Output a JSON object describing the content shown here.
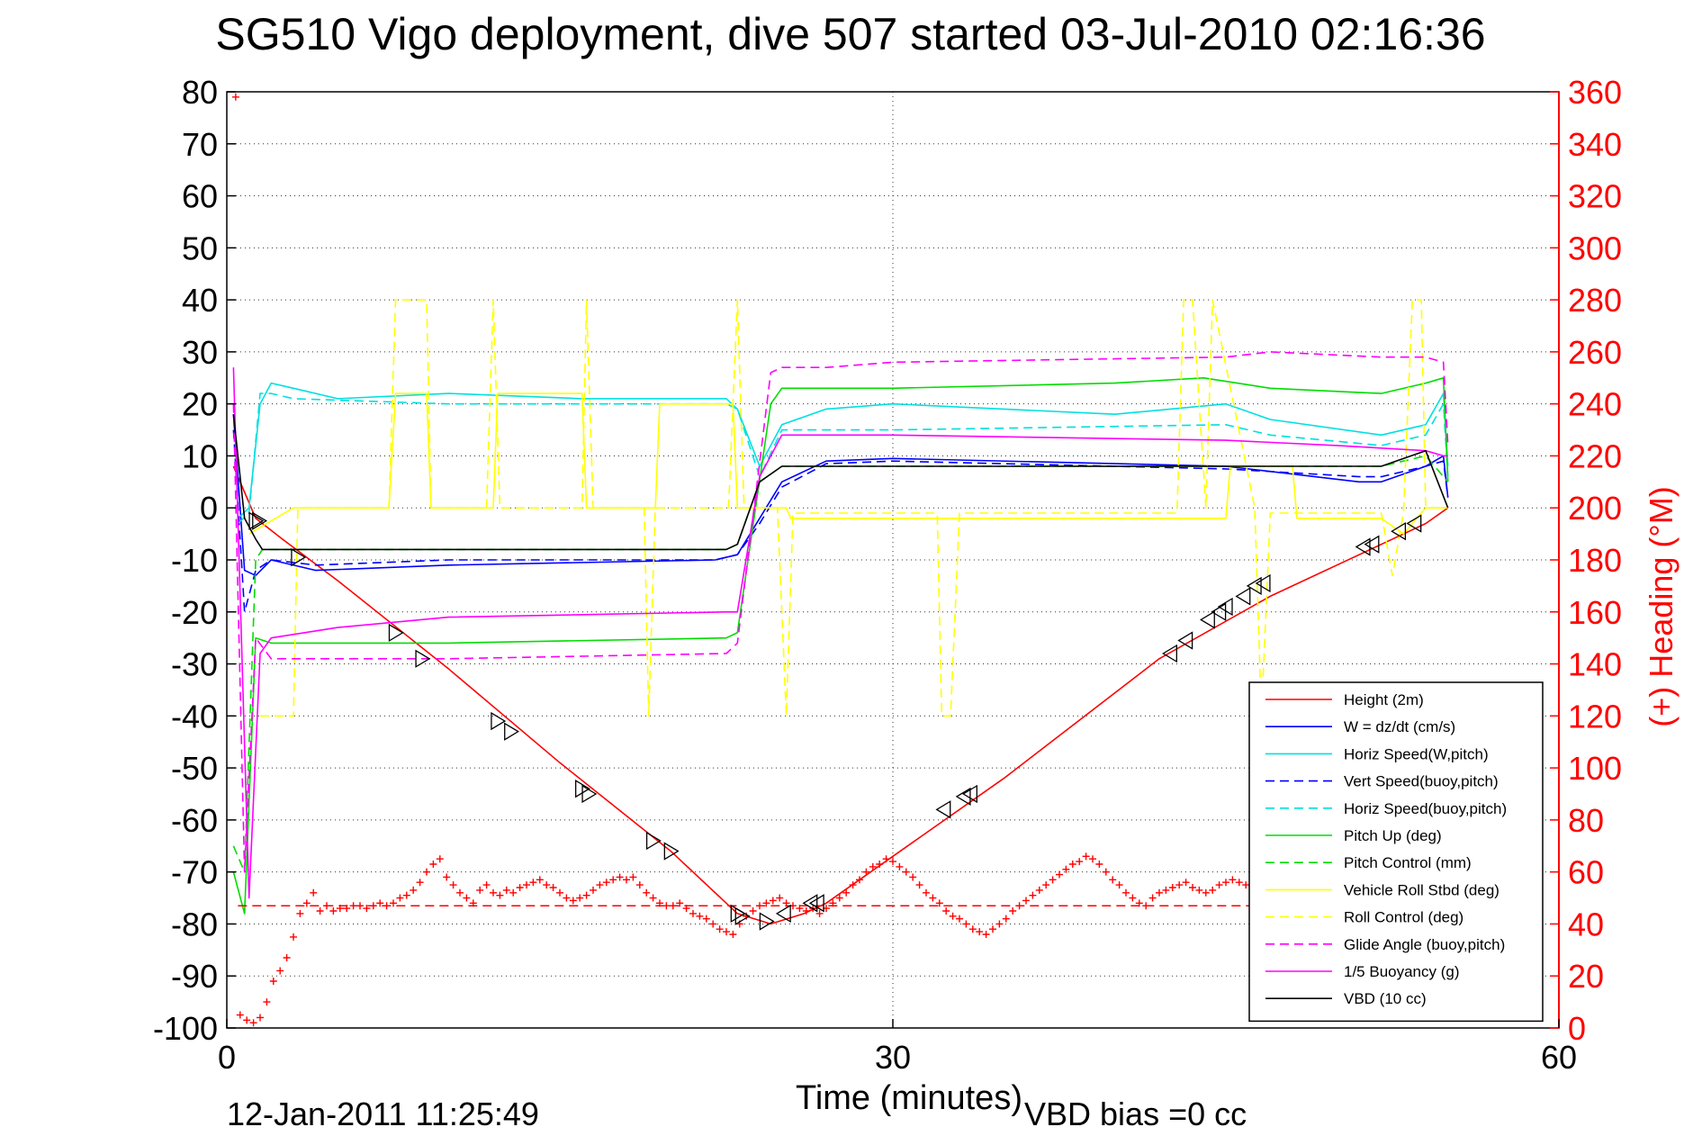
{
  "chart_data": {
    "type": "line",
    "title": "SG510 Vigo deployment, dive 507 started 03-Jul-2010 02:16:36",
    "xlabel": "Time (minutes)",
    "ylabel_right": "(+) Heading (°M)",
    "footer_left": "12-Jan-2011 11:25:49",
    "footer_right": "VBD bias =0 cc",
    "xlim": [
      0,
      60
    ],
    "ylim_left": [
      -100,
      80
    ],
    "ylim_right": [
      0,
      360
    ],
    "x_ticks": [
      "0",
      "30",
      "60"
    ],
    "y_ticks_left": [
      "80",
      "70",
      "60",
      "50",
      "40",
      "30",
      "20",
      "10",
      "0",
      "-10",
      "-20",
      "-30",
      "-40",
      "-50",
      "-60",
      "-70",
      "-80",
      "-90",
      "-100"
    ],
    "y_ticks_right": [
      "360",
      "340",
      "320",
      "300",
      "280",
      "260",
      "240",
      "220",
      "200",
      "180",
      "160",
      "140",
      "120",
      "100",
      "80",
      "60",
      "40",
      "20",
      "0"
    ],
    "grid": true,
    "legend_position": "bottom-right",
    "colors": {
      "axis_right": "#ff0000",
      "height": "#ff0000",
      "w": "#0000ff",
      "horiz_speed": "#00e0e0",
      "pitch": "#00dd00",
      "roll": "#ffff00",
      "glide": "#ff00ff",
      "vbd": "#000000"
    },
    "legend": [
      {
        "name": "Height (2m)",
        "color": "#ff0000",
        "dash": false
      },
      {
        "name": "W = dz/dt (cm/s)",
        "color": "#0000ff",
        "dash": false
      },
      {
        "name": "Horiz Speed(W,pitch)",
        "color": "#00e0e0",
        "dash": false
      },
      {
        "name": "Vert Speed(buoy,pitch)",
        "color": "#0000ff",
        "dash": true
      },
      {
        "name": "Horiz Speed(buoy,pitch)",
        "color": "#00e0e0",
        "dash": true
      },
      {
        "name": "Pitch Up (deg)",
        "color": "#00dd00",
        "dash": false
      },
      {
        "name": "Pitch Control (mm)",
        "color": "#00dd00",
        "dash": true
      },
      {
        "name": "Vehicle Roll Stbd (deg)",
        "color": "#ffff00",
        "dash": false
      },
      {
        "name": "Roll Control (deg)",
        "color": "#ffff00",
        "dash": true
      },
      {
        "name": "Glide Angle (buoy,pitch)",
        "color": "#ff00ff",
        "dash": true
      },
      {
        "name": "1/5 Buoyancy (g)",
        "color": "#ff00ff",
        "dash": false
      },
      {
        "name": "VBD (10 cc)",
        "color": "#000000",
        "dash": false
      }
    ],
    "series": [
      {
        "name": "Height (2m)",
        "color": "#ff0000",
        "dash": false,
        "x": [
          0.3,
          1.3,
          2.5,
          5,
          10,
          15,
          20,
          23,
          24.5,
          26,
          27,
          35,
          42,
          47,
          50,
          52,
          54,
          55
        ],
        "y": [
          8,
          -2,
          -6,
          -14,
          -31,
          -49,
          -66,
          -78,
          -80,
          -78,
          -76,
          -52,
          -29,
          -17,
          -11,
          -7,
          -3,
          0
        ]
      },
      {
        "name": "W = dz/dt (cm/s)",
        "color": "#0000ff",
        "dash": false,
        "x": [
          0.3,
          0.8,
          1.3,
          2,
          4,
          10,
          22,
          23,
          24,
          25,
          27,
          30,
          45,
          51,
          52,
          54,
          54.8,
          55
        ],
        "y": [
          18,
          -12,
          -13,
          -10,
          -12,
          -11,
          -10,
          -9,
          -2,
          5,
          9,
          9.5,
          8,
          5,
          5,
          8,
          10,
          2
        ]
      },
      {
        "name": "Horiz Speed(W,pitch)",
        "color": "#00e0e0",
        "dash": false,
        "x": [
          0.5,
          1,
          1.5,
          2,
          3,
          5,
          10,
          16,
          22.5,
          23,
          24,
          25,
          27,
          30,
          40,
          45,
          47,
          52,
          54,
          54.8,
          55
        ],
        "y": [
          -2,
          0,
          20,
          24,
          23,
          21,
          22,
          21,
          21,
          19,
          8,
          16,
          19,
          20,
          18,
          20,
          17,
          14,
          16,
          22,
          8
        ]
      },
      {
        "name": "Vert Speed(buoy,pitch)",
        "color": "#0000ff",
        "dash": true,
        "x": [
          0.3,
          0.8,
          1.3,
          2,
          4,
          10,
          22,
          23,
          24,
          25,
          27,
          30,
          45,
          51,
          52,
          54,
          54.8,
          55
        ],
        "y": [
          15,
          -20,
          -12,
          -10,
          -11,
          -10,
          -10,
          -9,
          -3,
          4,
          8.5,
          9,
          7.5,
          6,
          6,
          8,
          9,
          2
        ]
      },
      {
        "name": "Horiz Speed(buoy,pitch)",
        "color": "#00e0e0",
        "dash": true,
        "x": [
          0.5,
          1,
          1.5,
          2,
          3,
          10,
          22.5,
          23,
          24,
          25,
          27,
          30,
          45,
          47,
          52,
          54,
          54.8,
          55
        ],
        "y": [
          -3,
          -1,
          22,
          22,
          21,
          20,
          20,
          19,
          6,
          15,
          15,
          15,
          16,
          14,
          12,
          14,
          20,
          6
        ]
      },
      {
        "name": "Pitch Up (deg)",
        "color": "#00dd00",
        "dash": false,
        "x": [
          0.3,
          0.8,
          1.3,
          2,
          4,
          10,
          22.5,
          23,
          24.5,
          25,
          27,
          30,
          40,
          44,
          47,
          52,
          54,
          54.8,
          55
        ],
        "y": [
          -70,
          -78,
          -25,
          -26,
          -26,
          -26,
          -25,
          -24,
          20,
          23,
          23,
          23,
          24,
          25,
          23,
          22,
          24,
          25,
          5
        ]
      },
      {
        "name": "Pitch Control (mm)",
        "color": "#00dd00",
        "dash": true,
        "x": [
          0.3,
          0.8,
          1.3,
          1.6,
          2,
          10,
          22.5,
          23,
          24,
          25,
          30,
          45,
          52,
          54,
          55
        ],
        "y": [
          -65,
          -70,
          -10,
          -8,
          -8,
          -8,
          -8,
          -7,
          5,
          8,
          8,
          8,
          8,
          10,
          5
        ]
      },
      {
        "name": "Vehicle Roll Stbd (deg)",
        "color": "#ffff00",
        "dash": false,
        "x": [
          1,
          3,
          7.3,
          7.6,
          9.0,
          9.2,
          12,
          12.2,
          16,
          16.2,
          19.3,
          19.5,
          22.8,
          23,
          24,
          25.2,
          25.4,
          45,
          45.2,
          48,
          48.2,
          52,
          53,
          54,
          55
        ],
        "y": [
          -5,
          0,
          0,
          22,
          22,
          0,
          0,
          22,
          22,
          0,
          0,
          20,
          20,
          0,
          0,
          0,
          -2,
          -2,
          8,
          8,
          -2,
          -2,
          -5,
          0,
          0
        ]
      },
      {
        "name": "Roll Control (deg)",
        "color": "#ffff00",
        "dash": true,
        "x": [
          1.5,
          3,
          3.2,
          7.3,
          7.6,
          9.0,
          9.2,
          11.7,
          12,
          12.3,
          16,
          16.2,
          16.5,
          18.8,
          19,
          19.3,
          22.6,
          23,
          23.3,
          24.8,
          25.2,
          25.5,
          32,
          32.2,
          32.6,
          33,
          42.8,
          43.1,
          43.5,
          44.1,
          44.4,
          46.3,
          46.6,
          47,
          52,
          52.5,
          53,
          53.4,
          53.8,
          54,
          54.8,
          55
        ],
        "y": [
          -40,
          -40,
          0,
          0,
          40,
          40,
          0,
          0,
          40,
          0,
          0,
          40,
          0,
          0,
          -40,
          0,
          0,
          40,
          0,
          0,
          -40,
          -1,
          -1,
          -40,
          -40,
          -1,
          -1,
          40,
          40,
          0,
          40,
          0,
          -40,
          -1,
          -1,
          -13,
          -1,
          40,
          40,
          0,
          0,
          0
        ]
      },
      {
        "name": "Glide Angle (buoy,pitch)",
        "color": "#ff00ff",
        "dash": true,
        "x": [
          0.3,
          0.8,
          1.3,
          2,
          4,
          10,
          22.5,
          23,
          24.5,
          25,
          27,
          30,
          45,
          47,
          52,
          54,
          54.8,
          55
        ],
        "y": [
          20,
          -70,
          -25,
          -29,
          -29,
          -29,
          -28,
          -26,
          26,
          27,
          27,
          28,
          29,
          30,
          29,
          29,
          28,
          12
        ]
      },
      {
        "name": "1/5 Buoyancy (g)",
        "color": "#ff00ff",
        "dash": false,
        "x": [
          0.3,
          1,
          1.5,
          2,
          5,
          10,
          22.5,
          23,
          24,
          25,
          30,
          45,
          50,
          54,
          54.8,
          55
        ],
        "y": [
          27,
          -75,
          -28,
          -25,
          -23,
          -21,
          -20,
          -20,
          6,
          14,
          14,
          13,
          12,
          11,
          10,
          10
        ]
      },
      {
        "name": "VBD (10 cc)",
        "color": "#000000",
        "dash": false,
        "x": [
          0.3,
          0.8,
          1.3,
          1.6,
          2,
          10,
          22.5,
          23,
          24,
          25,
          30,
          45,
          52,
          54,
          55
        ],
        "y": [
          18,
          -2,
          -6,
          -8,
          -8,
          -8,
          -8,
          -7,
          5,
          8,
          8,
          8,
          8,
          11,
          0
        ]
      }
    ],
    "heading": {
      "name": "Heading",
      "color": "#ff0000",
      "dash_line_value": 47,
      "x": [
        0.4,
        0.6,
        0.9,
        1.2,
        1.5,
        1.8,
        2.1,
        2.4,
        2.7,
        3.0,
        3.3,
        3.6,
        3.9,
        4.2,
        4.5,
        4.8,
        5.1,
        5.4,
        5.7,
        6.0,
        6.3,
        6.6,
        6.9,
        7.2,
        7.5,
        7.8,
        8.1,
        8.4,
        8.7,
        9.0,
        9.3,
        9.6,
        9.9,
        10.2,
        10.5,
        10.8,
        11.1,
        11.4,
        11.7,
        12.0,
        12.3,
        12.6,
        12.9,
        13.2,
        13.5,
        13.8,
        14.1,
        14.4,
        14.7,
        15.0,
        15.3,
        15.6,
        15.9,
        16.2,
        16.5,
        16.8,
        17.1,
        17.4,
        17.7,
        18.0,
        18.3,
        18.6,
        18.9,
        19.2,
        19.5,
        19.8,
        20.1,
        20.4,
        20.7,
        21.0,
        21.3,
        21.6,
        21.9,
        22.2,
        22.5,
        22.8,
        23.1,
        23.4,
        23.7,
        24.0,
        24.3,
        24.6,
        24.9,
        25.2,
        25.5,
        25.8,
        26.1,
        26.4,
        26.7,
        27.0,
        27.3,
        27.6,
        27.9,
        28.2,
        28.5,
        28.8,
        29.1,
        29.4,
        29.7,
        30.0,
        30.3,
        30.6,
        30.9,
        31.2,
        31.5,
        31.8,
        32.1,
        32.4,
        32.7,
        33.0,
        33.3,
        33.6,
        33.9,
        34.2,
        34.5,
        34.8,
        35.1,
        35.4,
        35.7,
        36.0,
        36.3,
        36.6,
        36.9,
        37.2,
        37.5,
        37.8,
        38.1,
        38.4,
        38.7,
        39.0,
        39.3,
        39.6,
        39.9,
        40.2,
        40.5,
        40.8,
        41.1,
        41.4,
        41.7,
        42.0,
        42.3,
        42.6,
        42.9,
        43.2,
        43.5,
        43.8,
        44.1,
        44.4,
        44.7,
        45.0,
        45.3,
        45.6,
        45.9
      ],
      "y": [
        358,
        5,
        3,
        2,
        4,
        10,
        18,
        22,
        27,
        35,
        44,
        48,
        52,
        45,
        47,
        45,
        46,
        46,
        47,
        47,
        46,
        47,
        48,
        47,
        48,
        50,
        51,
        53,
        56,
        60,
        63,
        65,
        58,
        55,
        52,
        50,
        48,
        53,
        55,
        52,
        51,
        53,
        52,
        54,
        55,
        56,
        57,
        55,
        54,
        52,
        50,
        49,
        50,
        51,
        53,
        55,
        56,
        57,
        58,
        57,
        58,
        55,
        52,
        50,
        48,
        47,
        47,
        48,
        46,
        44,
        43,
        42,
        40,
        38,
        37,
        36,
        40,
        43,
        45,
        47,
        48,
        49,
        50,
        48,
        47,
        46,
        45,
        46,
        44,
        46,
        48,
        50,
        52,
        55,
        57,
        60,
        62,
        63,
        65,
        64,
        62,
        60,
        58,
        55,
        52,
        50,
        48,
        45,
        43,
        42,
        40,
        38,
        37,
        36,
        38,
        40,
        42,
        45,
        47,
        49,
        51,
        53,
        55,
        57,
        59,
        61,
        63,
        64,
        66,
        65,
        63,
        60,
        57,
        55,
        52,
        50,
        48,
        47,
        50,
        52,
        53,
        54,
        55,
        56,
        54,
        53,
        52,
        53,
        55,
        56,
        57,
        56,
        55
      ]
    },
    "markers": {
      "x": [
        1.3,
        1.45,
        3.2,
        7.6,
        8.8,
        12.2,
        12.8,
        16.0,
        16.3,
        19.2,
        20.0,
        23.0,
        23.2,
        24.3,
        25.1,
        26.3,
        26.6,
        32.3,
        33.2,
        33.5,
        42.5,
        43.2,
        44.2,
        44.7,
        45.0,
        45.8,
        46.3,
        46.7,
        51.2,
        51.6,
        52.8,
        53.5
      ],
      "y": [
        -2.5,
        -2.5,
        -9.5,
        -24,
        -29,
        -41,
        -43,
        -54,
        -55,
        -64,
        -66,
        -78,
        -78.5,
        -79.5,
        -78,
        -76,
        -76,
        -58,
        -55.5,
        -55,
        -28,
        -25.5,
        -21.5,
        -20,
        -19,
        -17,
        -15,
        -14.5,
        -7.5,
        -7,
        -4.5,
        -3
      ]
    }
  }
}
